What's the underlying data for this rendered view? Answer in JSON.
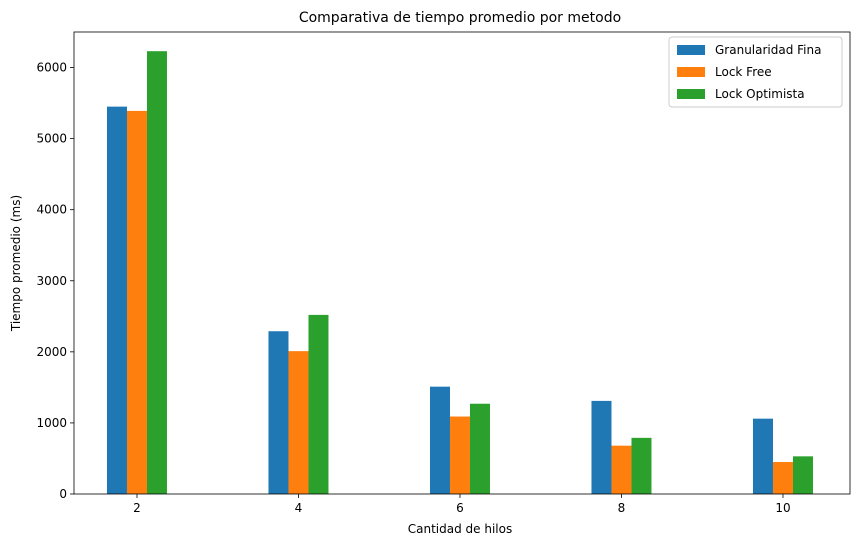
{
  "chart_data": {
    "type": "bar",
    "title": "Comparativa de tiempo promedio por metodo",
    "xlabel": "Cantidad de hilos",
    "ylabel": "Tiempo promedio (ms)",
    "categories": [
      "2",
      "4",
      "6",
      "8",
      "10"
    ],
    "yticks": [
      "0",
      "1000",
      "2000",
      "3000",
      "4000",
      "5000",
      "6000"
    ],
    "ylim": [
      0,
      6500
    ],
    "grid": false,
    "legend_position": "top-right",
    "series": [
      {
        "name": "Granularidad Fina",
        "color": "#1f77b4",
        "values": [
          5450,
          2290,
          1510,
          1310,
          1060
        ]
      },
      {
        "name": "Lock Free",
        "color": "#ff7f0e",
        "values": [
          5390,
          2010,
          1090,
          680,
          450
        ]
      },
      {
        "name": "Lock Optimista",
        "color": "#2ca02c",
        "values": [
          6230,
          2520,
          1270,
          790,
          530
        ]
      }
    ]
  }
}
